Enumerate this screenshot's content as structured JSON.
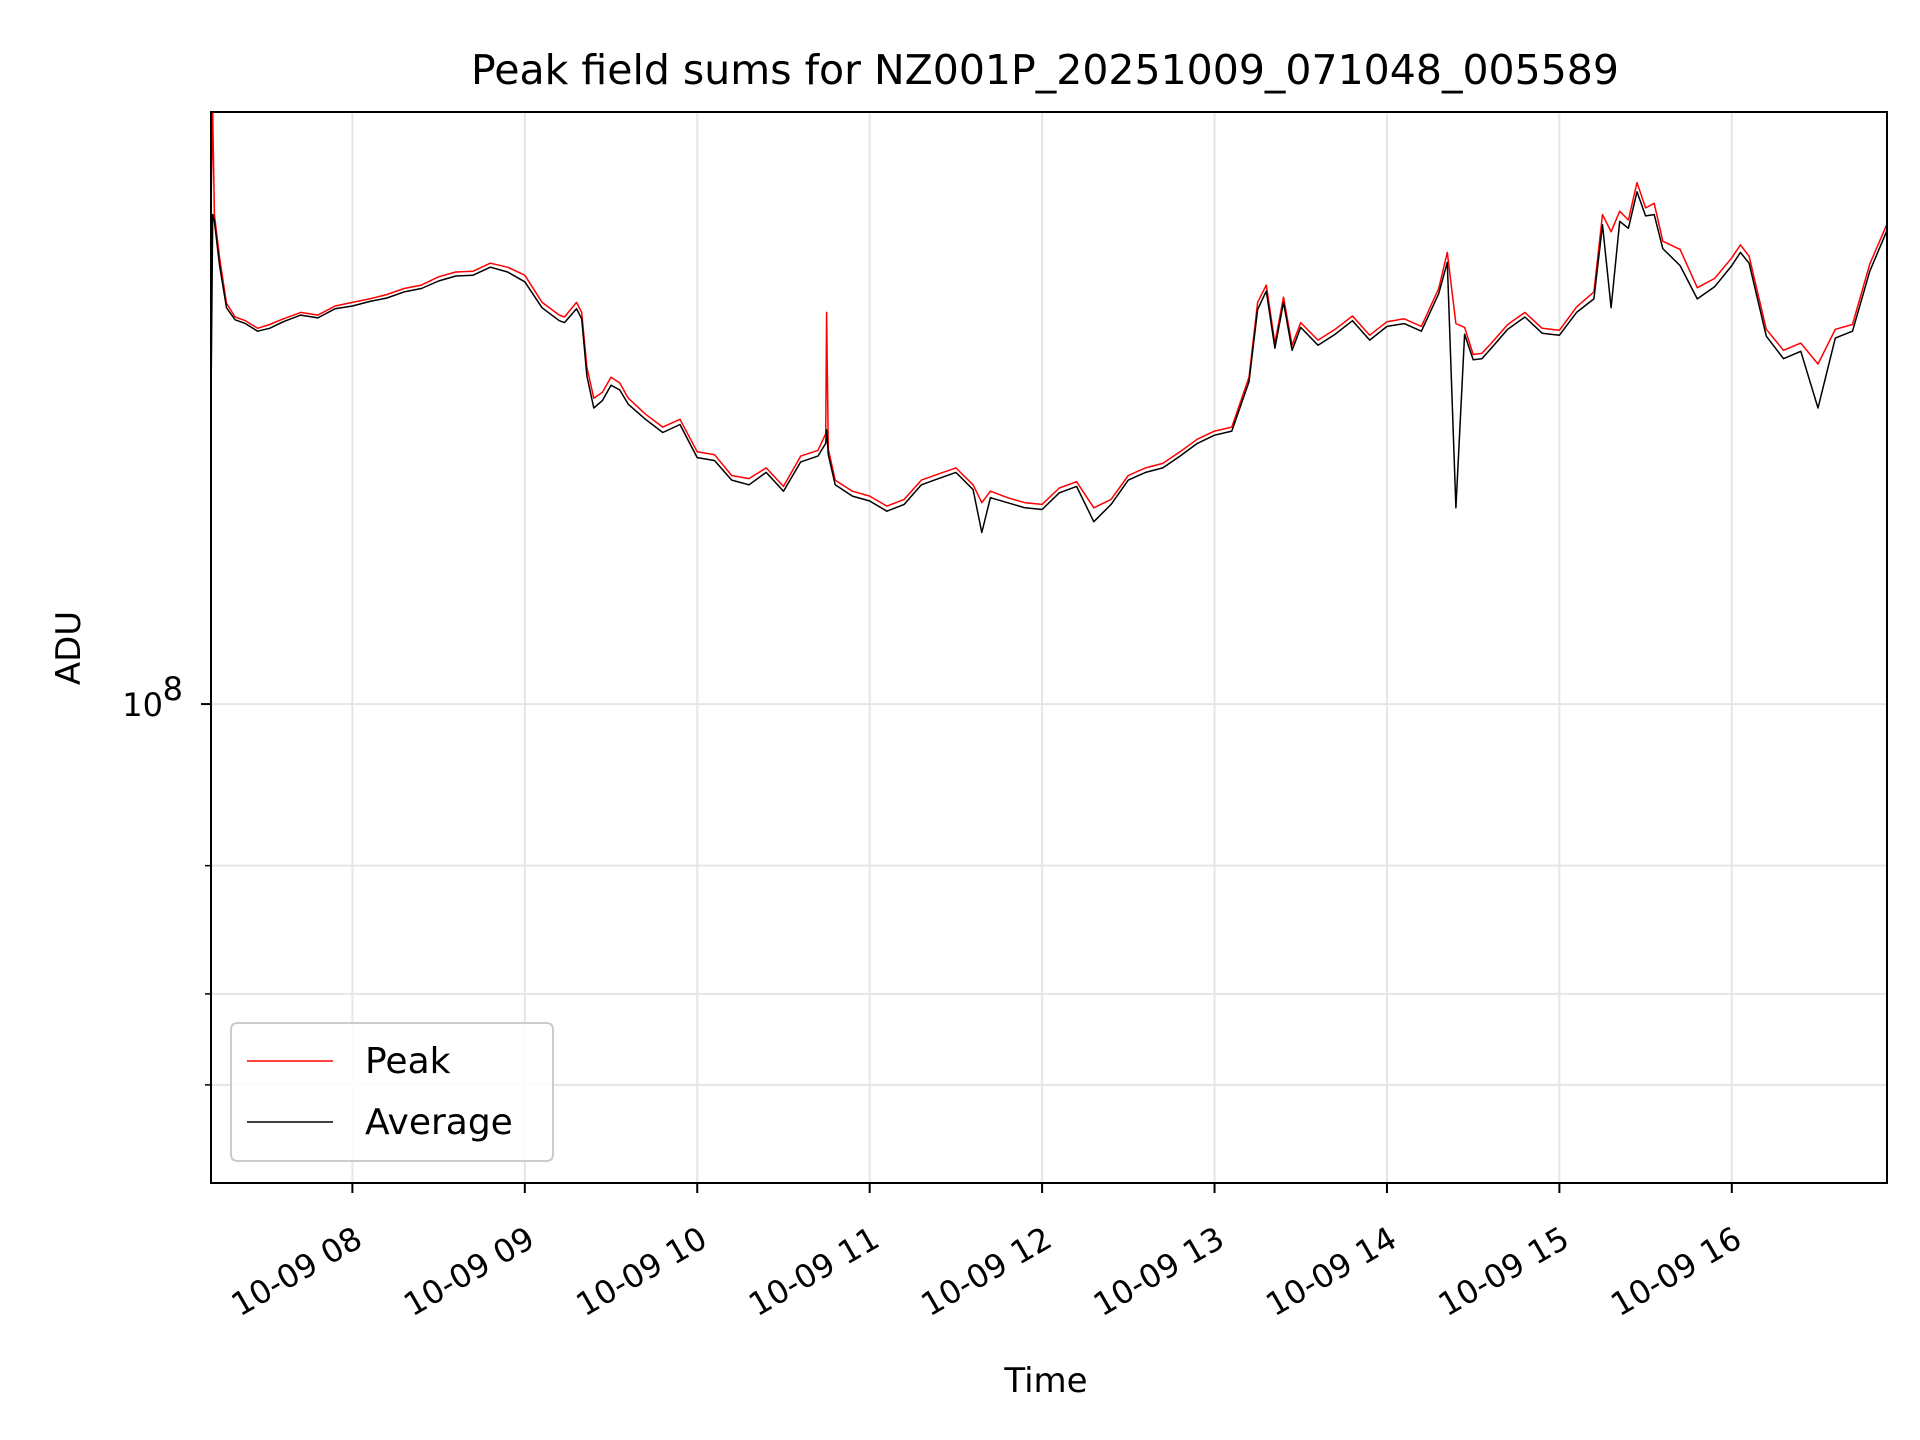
{
  "chart_data": {
    "type": "line",
    "title": "Peak field sums for NZ001P_20251009_071048_005589",
    "xlabel": "Time",
    "ylabel": "ADU",
    "yscale": "log",
    "ylim": [
      22000000,
      650000000
    ],
    "xlim": [
      7.18,
      16.9
    ],
    "x_tick_values": [
      8,
      9,
      10,
      11,
      12,
      13,
      14,
      15,
      16
    ],
    "x_tick_labels": [
      "10-09 08",
      "10-09 09",
      "10-09 10",
      "10-09 11",
      "10-09 12",
      "10-09 13",
      "10-09 14",
      "10-09 15",
      "10-09 16"
    ],
    "y_major_tick_value": 100000000,
    "y_major_tick_base": "10",
    "y_major_tick_exp": "8",
    "y_minor_tick_values": [
      30000000,
      40000000,
      60000000
    ],
    "grid": true,
    "legend_position": "lower-left",
    "series": [
      {
        "name": "Peak",
        "color": "#ff0000",
        "x": [
          7.18,
          7.19,
          7.2,
          7.23,
          7.27,
          7.32,
          7.38,
          7.45,
          7.52,
          7.6,
          7.7,
          7.8,
          7.9,
          8.0,
          8.1,
          8.2,
          8.3,
          8.4,
          8.5,
          8.6,
          8.7,
          8.8,
          8.9,
          9.0,
          9.1,
          9.2,
          9.23,
          9.3,
          9.33,
          9.36,
          9.4,
          9.45,
          9.5,
          9.55,
          9.6,
          9.7,
          9.8,
          9.9,
          10.0,
          10.1,
          10.2,
          10.3,
          10.4,
          10.5,
          10.6,
          10.7,
          10.745,
          10.75,
          10.76,
          10.8,
          10.9,
          11.0,
          11.1,
          11.2,
          11.3,
          11.4,
          11.5,
          11.6,
          11.65,
          11.7,
          11.8,
          11.9,
          12.0,
          12.1,
          12.2,
          12.3,
          12.4,
          12.5,
          12.6,
          12.7,
          12.8,
          12.9,
          13.0,
          13.1,
          13.2,
          13.25,
          13.3,
          13.35,
          13.4,
          13.45,
          13.5,
          13.6,
          13.7,
          13.8,
          13.9,
          14.0,
          14.1,
          14.2,
          14.3,
          14.35,
          14.4,
          14.45,
          14.5,
          14.55,
          14.6,
          14.7,
          14.8,
          14.9,
          15.0,
          15.1,
          15.2,
          15.25,
          15.3,
          15.35,
          15.4,
          15.45,
          15.5,
          15.55,
          15.6,
          15.7,
          15.8,
          15.9,
          16.0,
          16.05,
          16.1,
          16.2,
          16.3,
          16.4,
          16.5,
          16.6,
          16.7,
          16.8,
          16.9
        ],
        "values": [
          480000000,
          650000000,
          470000000,
          410000000,
          355000000,
          340000000,
          336000000,
          328000000,
          332000000,
          338000000,
          345000000,
          342000000,
          352000000,
          356000000,
          360000000,
          365000000,
          372000000,
          376000000,
          386000000,
          392000000,
          393000000,
          403000000,
          398000000,
          388000000,
          356000000,
          342000000,
          340000000,
          356000000,
          345000000,
          290000000,
          263000000,
          268000000,
          281000000,
          276000000,
          263000000,
          250000000,
          240000000,
          246000000,
          222000000,
          220000000,
          206000000,
          204000000,
          211000000,
          199000000,
          219000000,
          223000000,
          235000000,
          345000000,
          224000000,
          203000000,
          196000000,
          193000000,
          187000000,
          191000000,
          203000000,
          207000000,
          211000000,
          200000000,
          189000000,
          196000000,
          192000000,
          189000000,
          188000000,
          198000000,
          202000000,
          186000000,
          191000000,
          206000000,
          211000000,
          214000000,
          222000000,
          231000000,
          237000000,
          240000000,
          281000000,
          356000000,
          376000000,
          313000000,
          362000000,
          311000000,
          334000000,
          316000000,
          327000000,
          341000000,
          321000000,
          335000000,
          338000000,
          330000000,
          372000000,
          417000000,
          333000000,
          329000000,
          302000000,
          303000000,
          312000000,
          332000000,
          345000000,
          328000000,
          326000000,
          351000000,
          368000000,
          470000000,
          445000000,
          475000000,
          462000000,
          520000000,
          480000000,
          487000000,
          432000000,
          421000000,
          373000000,
          384000000,
          410000000,
          427000000,
          412000000,
          327000000,
          306000000,
          313000000,
          293000000,
          327000000,
          332000000,
          402000000,
          456000000
        ]
      },
      {
        "name": "Average",
        "color": "#000000",
        "x": [
          7.18,
          7.19,
          7.2,
          7.23,
          7.27,
          7.32,
          7.38,
          7.45,
          7.52,
          7.6,
          7.7,
          7.8,
          7.9,
          8.0,
          8.1,
          8.2,
          8.3,
          8.4,
          8.5,
          8.6,
          8.7,
          8.8,
          8.9,
          9.0,
          9.1,
          9.2,
          9.23,
          9.3,
          9.33,
          9.36,
          9.4,
          9.45,
          9.5,
          9.55,
          9.6,
          9.7,
          9.8,
          9.9,
          10.0,
          10.1,
          10.2,
          10.3,
          10.4,
          10.5,
          10.6,
          10.7,
          10.745,
          10.75,
          10.76,
          10.8,
          10.9,
          11.0,
          11.1,
          11.2,
          11.3,
          11.4,
          11.5,
          11.6,
          11.65,
          11.7,
          11.8,
          11.9,
          12.0,
          12.1,
          12.2,
          12.3,
          12.4,
          12.5,
          12.6,
          12.7,
          12.8,
          12.9,
          13.0,
          13.1,
          13.2,
          13.25,
          13.3,
          13.35,
          13.4,
          13.45,
          13.5,
          13.6,
          13.7,
          13.8,
          13.9,
          14.0,
          14.1,
          14.2,
          14.3,
          14.35,
          14.4,
          14.45,
          14.5,
          14.55,
          14.6,
          14.7,
          14.8,
          14.9,
          15.0,
          15.1,
          15.2,
          15.25,
          15.3,
          15.35,
          15.4,
          15.45,
          15.5,
          15.55,
          15.6,
          15.7,
          15.8,
          15.9,
          16.0,
          16.05,
          16.1,
          16.2,
          16.3,
          16.4,
          16.5,
          16.6,
          16.7,
          16.8,
          16.9
        ],
        "values": [
          260000000,
          470000000,
          460000000,
          400000000,
          350000000,
          337000000,
          333000000,
          325000000,
          328000000,
          335000000,
          342000000,
          339000000,
          349000000,
          352000000,
          357000000,
          361000000,
          368000000,
          372000000,
          381000000,
          387000000,
          388000000,
          398000000,
          392000000,
          380000000,
          350000000,
          336000000,
          334000000,
          349000000,
          338000000,
          282000000,
          255000000,
          261000000,
          274000000,
          270000000,
          258000000,
          246000000,
          236000000,
          242000000,
          218000000,
          216000000,
          203000000,
          200000000,
          208000000,
          196000000,
          215000000,
          219000000,
          228000000,
          238000000,
          220000000,
          200000000,
          193000000,
          190000000,
          184000000,
          188000000,
          200000000,
          204000000,
          208000000,
          197000000,
          172000000,
          192000000,
          189000000,
          186000000,
          185000000,
          195000000,
          199000000,
          178000000,
          188000000,
          203000000,
          208000000,
          211000000,
          219000000,
          228000000,
          234000000,
          237000000,
          277000000,
          348000000,
          369000000,
          308000000,
          356000000,
          306000000,
          329000000,
          311000000,
          322000000,
          336000000,
          316000000,
          330000000,
          333000000,
          325000000,
          366000000,
          404000000,
          186000000,
          322000000,
          297000000,
          298000000,
          307000000,
          327000000,
          340000000,
          323000000,
          321000000,
          345000000,
          360000000,
          455000000,
          350000000,
          460000000,
          450000000,
          505000000,
          468000000,
          470000000,
          422000000,
          400000000,
          360000000,
          374000000,
          400000000,
          417000000,
          403000000,
          320000000,
          298000000,
          305000000,
          255000000,
          318000000,
          325000000,
          393000000,
          447000000
        ]
      }
    ]
  }
}
